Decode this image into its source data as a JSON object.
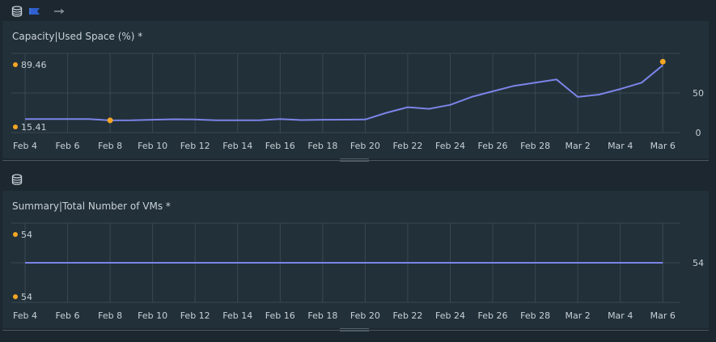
{
  "colors": {
    "series": "#7b84e8",
    "marker": "#f5a623",
    "grid": "#3a4852",
    "text": "#c7d0d6"
  },
  "toolbars": [
    {
      "icons": [
        "database-icon",
        "flag-icon",
        "arrow-icon"
      ]
    },
    {
      "icons": [
        "database-icon"
      ]
    }
  ],
  "chart_data": [
    {
      "type": "line",
      "title": "Capacity|Used Space (%) *",
      "x_ticks": [
        "Feb 4",
        "Feb 6",
        "Feb 8",
        "Feb 10",
        "Feb 12",
        "Feb 14",
        "Feb 16",
        "Feb 18",
        "Feb 20",
        "Feb 22",
        "Feb 24",
        "Feb 26",
        "Feb 28",
        "Mar 2",
        "Mar 4",
        "Mar 6"
      ],
      "y_ticks": [
        "50",
        "0"
      ],
      "legend_max": "89.46",
      "legend_min": "15.41",
      "xlim": [
        "Feb 4",
        "Mar 6"
      ],
      "ylim": [
        0,
        100
      ],
      "series": [
        {
          "x": [
            "Feb 4",
            "Feb 5",
            "Feb 6",
            "Feb 7",
            "Feb 8",
            "Feb 9",
            "Feb 10",
            "Feb 11",
            "Feb 12",
            "Feb 13",
            "Feb 14",
            "Feb 15",
            "Feb 16",
            "Feb 17",
            "Feb 18",
            "Feb 19",
            "Feb 20",
            "Feb 21",
            "Feb 22",
            "Feb 23",
            "Feb 24",
            "Feb 25",
            "Feb 26",
            "Feb 27",
            "Feb 28",
            "Feb 29",
            "Mar 1",
            "Mar 2",
            "Mar 3",
            "Mar 4",
            "Mar 5"
          ],
          "y": [
            17,
            17,
            17,
            17,
            15.4,
            15.5,
            16.2,
            16.8,
            16.5,
            15.5,
            15.5,
            15.6,
            17,
            15.8,
            16.2,
            16.3,
            16.5,
            25,
            32,
            30,
            35,
            45,
            52,
            59,
            63,
            67,
            45,
            48,
            55,
            63,
            85
          ]
        }
      ],
      "markers": [
        {
          "x": "Feb 8",
          "y": 15.41
        },
        {
          "x": "Mar 5",
          "y": 89.46
        }
      ]
    },
    {
      "type": "line",
      "title": "Summary|Total Number of VMs *",
      "x_ticks": [
        "Feb 4",
        "Feb 6",
        "Feb 8",
        "Feb 10",
        "Feb 12",
        "Feb 14",
        "Feb 16",
        "Feb 18",
        "Feb 20",
        "Feb 22",
        "Feb 24",
        "Feb 26",
        "Feb 28",
        "Mar 2",
        "Mar 4",
        "Mar 6"
      ],
      "y_ticks": [
        "54"
      ],
      "legend_max": "54",
      "legend_min": "54",
      "xlim": [
        "Feb 4",
        "Mar 6"
      ],
      "ylim": [
        53,
        55
      ],
      "series": [
        {
          "x": [
            "Feb 4",
            "Mar 5"
          ],
          "y": [
            54,
            54
          ]
        }
      ]
    }
  ]
}
